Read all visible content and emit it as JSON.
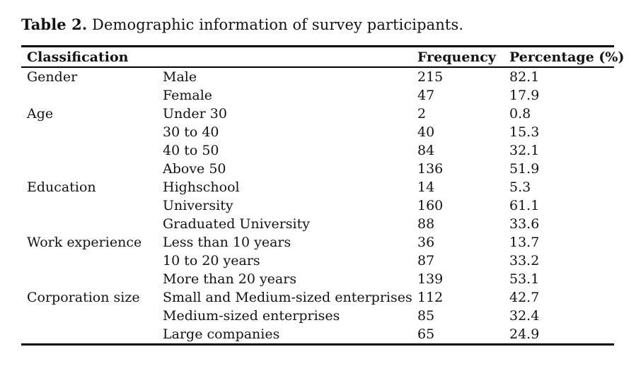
{
  "caption": {
    "label": "Table 2.",
    "text": " Demographic information of survey participants."
  },
  "table": {
    "headers": {
      "classification": "Classification",
      "frequency": "Frequency",
      "percentage": "Percentage (%)"
    },
    "rows": [
      {
        "classification": "Gender",
        "category": "Male",
        "frequency": "215",
        "percentage": "82.1"
      },
      {
        "classification": "",
        "category": "Female",
        "frequency": "47",
        "percentage": "17.9"
      },
      {
        "classification": "Age",
        "category": "Under 30",
        "frequency": "2",
        "percentage": "0.8"
      },
      {
        "classification": "",
        "category": "30 to 40",
        "frequency": "40",
        "percentage": "15.3"
      },
      {
        "classification": "",
        "category": "40 to 50",
        "frequency": "84",
        "percentage": "32.1"
      },
      {
        "classification": "",
        "category": "Above 50",
        "frequency": "136",
        "percentage": "51.9"
      },
      {
        "classification": "Education",
        "category": "Highschool",
        "frequency": "14",
        "percentage": "5.3"
      },
      {
        "classification": "",
        "category": "University",
        "frequency": "160",
        "percentage": "61.1"
      },
      {
        "classification": "",
        "category": "Graduated University",
        "frequency": "88",
        "percentage": "33.6"
      },
      {
        "classification": "Work experience",
        "category": "Less than 10 years",
        "frequency": "36",
        "percentage": "13.7"
      },
      {
        "classification": "",
        "category": "10 to 20 years",
        "frequency": "87",
        "percentage": "33.2"
      },
      {
        "classification": "",
        "category": "More than 20 years",
        "frequency": "139",
        "percentage": "53.1"
      },
      {
        "classification": "Corporation size",
        "category": "Small and Medium-sized enterprises",
        "frequency": "112",
        "percentage": "42.7"
      },
      {
        "classification": "",
        "category": "Medium-sized enterprises",
        "frequency": "85",
        "percentage": "32.4"
      },
      {
        "classification": "",
        "category": "Large companies",
        "frequency": "65",
        "percentage": "24.9"
      }
    ]
  },
  "colors": {
    "text": "#131313",
    "rule": "#000000",
    "background": "#ffffff"
  }
}
